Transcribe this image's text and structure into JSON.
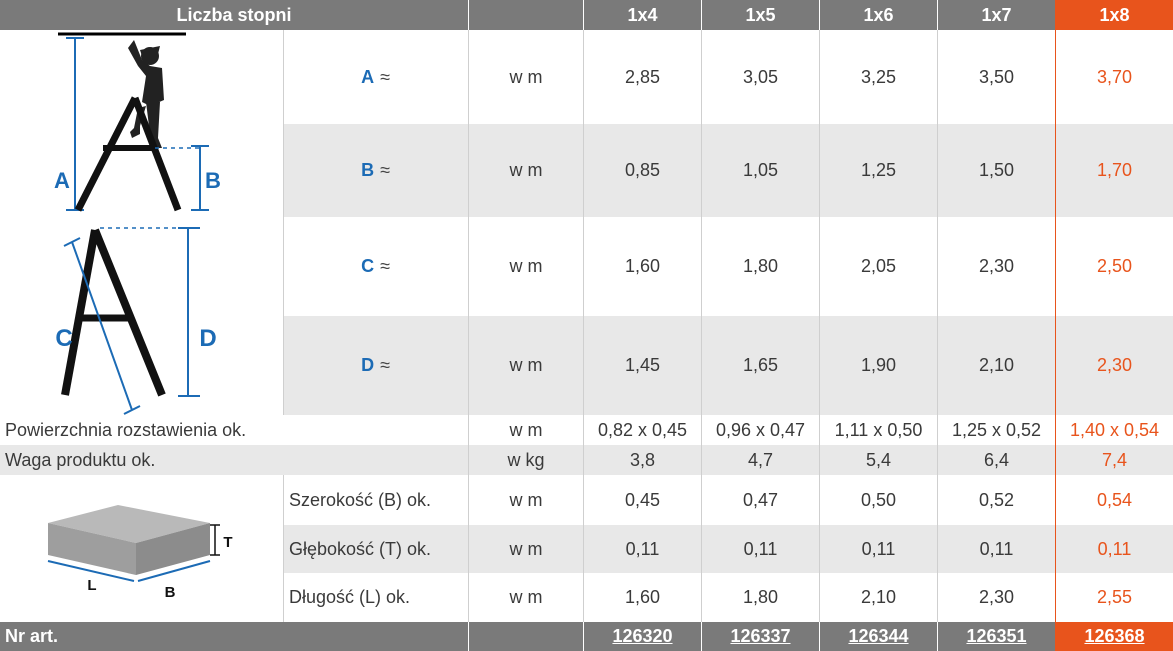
{
  "header": {
    "title": "Liczba stopni",
    "columns": [
      "1x4",
      "1x5",
      "1x6",
      "1x7",
      "1x8"
    ],
    "highlighted_column": "1x8"
  },
  "dimension_rows": [
    {
      "label": "A",
      "approx": "≈",
      "unit": "w m",
      "values": [
        "2,85",
        "3,05",
        "3,25",
        "3,50",
        "3,70"
      ]
    },
    {
      "label": "B",
      "approx": "≈",
      "unit": "w m",
      "values": [
        "0,85",
        "1,05",
        "1,25",
        "1,50",
        "1,70"
      ]
    },
    {
      "label": "C",
      "approx": "≈",
      "unit": "w m",
      "values": [
        "1,60",
        "1,80",
        "2,05",
        "2,30",
        "2,50"
      ]
    },
    {
      "label": "D",
      "approx": "≈",
      "unit": "w m",
      "values": [
        "1,45",
        "1,65",
        "1,90",
        "2,10",
        "2,30"
      ]
    }
  ],
  "footprint": {
    "label": "Powierzchnia rozstawienia ok.",
    "unit": "w m",
    "values": [
      "0,82 x 0,45",
      "0,96 x 0,47",
      "1,11 x 0,50",
      "1,25 x 0,52",
      "1,40 x 0,54"
    ]
  },
  "weight": {
    "label": "Waga produktu ok.",
    "unit": "w kg",
    "values": [
      "3,8",
      "4,7",
      "5,4",
      "6,4",
      "7,4"
    ]
  },
  "packaging_rows": [
    {
      "label": "Szerokość (B) ok.",
      "unit": "w m",
      "values": [
        "0,45",
        "0,47",
        "0,50",
        "0,52",
        "0,54"
      ]
    },
    {
      "label": "Głębokość (T) ok.",
      "unit": "w m",
      "values": [
        "0,11",
        "0,11",
        "0,11",
        "0,11",
        "0,11"
      ]
    },
    {
      "label": "Długość (L) ok.",
      "unit": "w m",
      "values": [
        "1,60",
        "1,80",
        "2,10",
        "2,30",
        "2,55"
      ]
    }
  ],
  "article": {
    "label": "Nr art.",
    "numbers": [
      "126320",
      "126337",
      "126344",
      "126351",
      "126368"
    ]
  },
  "diagram_labels": {
    "a": "A",
    "b": "B",
    "c": "C",
    "d": "D",
    "t": "T",
    "l": "L",
    "b2": "B"
  },
  "colors": {
    "header_grey": "#7a7a7a",
    "highlight": "#e8541c",
    "label_blue": "#1c6bb5",
    "row_grey": "#e8e8e8"
  }
}
